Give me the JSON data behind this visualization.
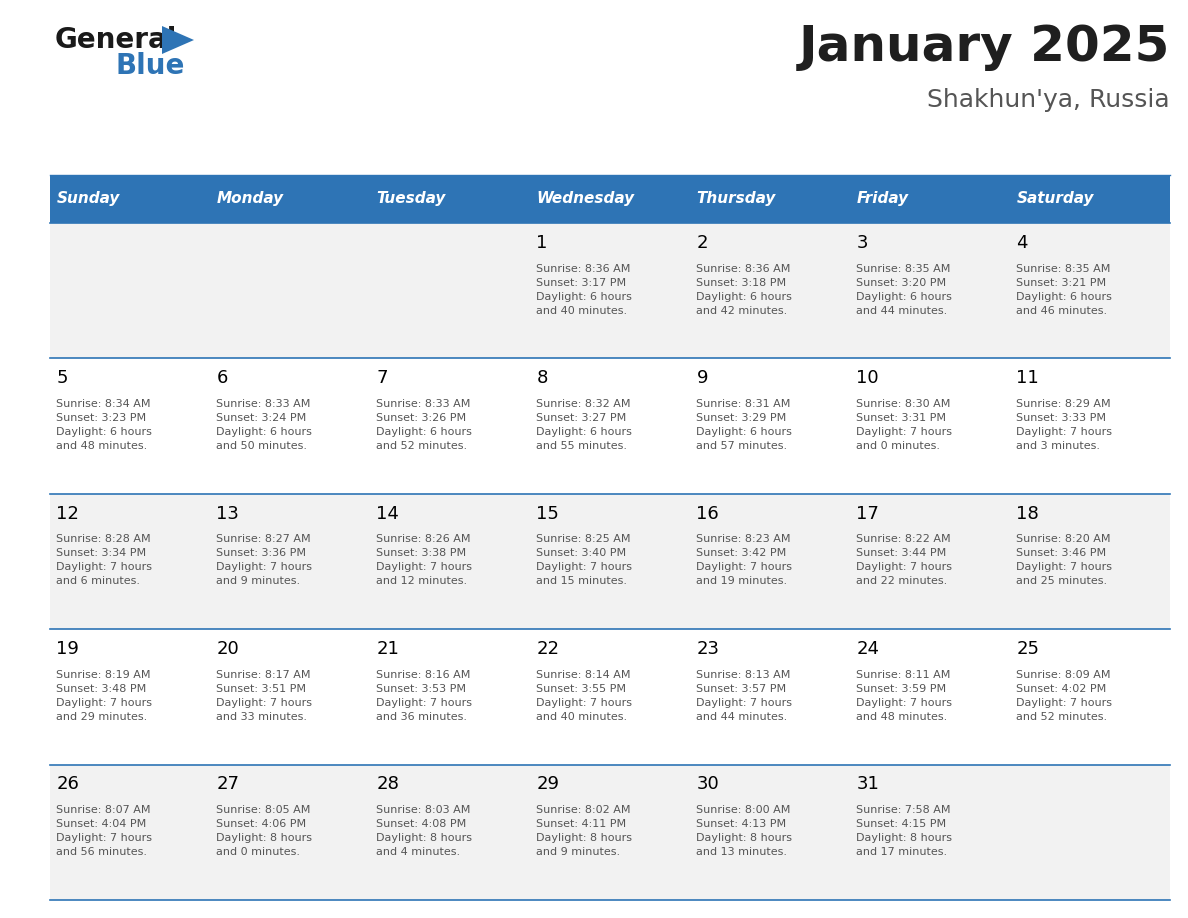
{
  "title": "January 2025",
  "subtitle": "Shakhun'ya, Russia",
  "header_bg": "#2E74B5",
  "header_text_color": "#FFFFFF",
  "weekdays": [
    "Sunday",
    "Monday",
    "Tuesday",
    "Wednesday",
    "Thursday",
    "Friday",
    "Saturday"
  ],
  "cell_bg_odd": "#F2F2F2",
  "cell_bg_even": "#FFFFFF",
  "separator_color": "#2E74B5",
  "day_number_color": "#000000",
  "info_text_color": "#555555",
  "title_color": "#1F1F1F",
  "subtitle_color": "#555555",
  "logo_general_color": "#1A1A1A",
  "logo_blue_color": "#2E74B5",
  "calendar": [
    [
      {
        "day": null,
        "info": null
      },
      {
        "day": null,
        "info": null
      },
      {
        "day": null,
        "info": null
      },
      {
        "day": 1,
        "info": "Sunrise: 8:36 AM\nSunset: 3:17 PM\nDaylight: 6 hours\nand 40 minutes."
      },
      {
        "day": 2,
        "info": "Sunrise: 8:36 AM\nSunset: 3:18 PM\nDaylight: 6 hours\nand 42 minutes."
      },
      {
        "day": 3,
        "info": "Sunrise: 8:35 AM\nSunset: 3:20 PM\nDaylight: 6 hours\nand 44 minutes."
      },
      {
        "day": 4,
        "info": "Sunrise: 8:35 AM\nSunset: 3:21 PM\nDaylight: 6 hours\nand 46 minutes."
      }
    ],
    [
      {
        "day": 5,
        "info": "Sunrise: 8:34 AM\nSunset: 3:23 PM\nDaylight: 6 hours\nand 48 minutes."
      },
      {
        "day": 6,
        "info": "Sunrise: 8:33 AM\nSunset: 3:24 PM\nDaylight: 6 hours\nand 50 minutes."
      },
      {
        "day": 7,
        "info": "Sunrise: 8:33 AM\nSunset: 3:26 PM\nDaylight: 6 hours\nand 52 minutes."
      },
      {
        "day": 8,
        "info": "Sunrise: 8:32 AM\nSunset: 3:27 PM\nDaylight: 6 hours\nand 55 minutes."
      },
      {
        "day": 9,
        "info": "Sunrise: 8:31 AM\nSunset: 3:29 PM\nDaylight: 6 hours\nand 57 minutes."
      },
      {
        "day": 10,
        "info": "Sunrise: 8:30 AM\nSunset: 3:31 PM\nDaylight: 7 hours\nand 0 minutes."
      },
      {
        "day": 11,
        "info": "Sunrise: 8:29 AM\nSunset: 3:33 PM\nDaylight: 7 hours\nand 3 minutes."
      }
    ],
    [
      {
        "day": 12,
        "info": "Sunrise: 8:28 AM\nSunset: 3:34 PM\nDaylight: 7 hours\nand 6 minutes."
      },
      {
        "day": 13,
        "info": "Sunrise: 8:27 AM\nSunset: 3:36 PM\nDaylight: 7 hours\nand 9 minutes."
      },
      {
        "day": 14,
        "info": "Sunrise: 8:26 AM\nSunset: 3:38 PM\nDaylight: 7 hours\nand 12 minutes."
      },
      {
        "day": 15,
        "info": "Sunrise: 8:25 AM\nSunset: 3:40 PM\nDaylight: 7 hours\nand 15 minutes."
      },
      {
        "day": 16,
        "info": "Sunrise: 8:23 AM\nSunset: 3:42 PM\nDaylight: 7 hours\nand 19 minutes."
      },
      {
        "day": 17,
        "info": "Sunrise: 8:22 AM\nSunset: 3:44 PM\nDaylight: 7 hours\nand 22 minutes."
      },
      {
        "day": 18,
        "info": "Sunrise: 8:20 AM\nSunset: 3:46 PM\nDaylight: 7 hours\nand 25 minutes."
      }
    ],
    [
      {
        "day": 19,
        "info": "Sunrise: 8:19 AM\nSunset: 3:48 PM\nDaylight: 7 hours\nand 29 minutes."
      },
      {
        "day": 20,
        "info": "Sunrise: 8:17 AM\nSunset: 3:51 PM\nDaylight: 7 hours\nand 33 minutes."
      },
      {
        "day": 21,
        "info": "Sunrise: 8:16 AM\nSunset: 3:53 PM\nDaylight: 7 hours\nand 36 minutes."
      },
      {
        "day": 22,
        "info": "Sunrise: 8:14 AM\nSunset: 3:55 PM\nDaylight: 7 hours\nand 40 minutes."
      },
      {
        "day": 23,
        "info": "Sunrise: 8:13 AM\nSunset: 3:57 PM\nDaylight: 7 hours\nand 44 minutes."
      },
      {
        "day": 24,
        "info": "Sunrise: 8:11 AM\nSunset: 3:59 PM\nDaylight: 7 hours\nand 48 minutes."
      },
      {
        "day": 25,
        "info": "Sunrise: 8:09 AM\nSunset: 4:02 PM\nDaylight: 7 hours\nand 52 minutes."
      }
    ],
    [
      {
        "day": 26,
        "info": "Sunrise: 8:07 AM\nSunset: 4:04 PM\nDaylight: 7 hours\nand 56 minutes."
      },
      {
        "day": 27,
        "info": "Sunrise: 8:05 AM\nSunset: 4:06 PM\nDaylight: 8 hours\nand 0 minutes."
      },
      {
        "day": 28,
        "info": "Sunrise: 8:03 AM\nSunset: 4:08 PM\nDaylight: 8 hours\nand 4 minutes."
      },
      {
        "day": 29,
        "info": "Sunrise: 8:02 AM\nSunset: 4:11 PM\nDaylight: 8 hours\nand 9 minutes."
      },
      {
        "day": 30,
        "info": "Sunrise: 8:00 AM\nSunset: 4:13 PM\nDaylight: 8 hours\nand 13 minutes."
      },
      {
        "day": 31,
        "info": "Sunrise: 7:58 AM\nSunset: 4:15 PM\nDaylight: 8 hours\nand 17 minutes."
      },
      {
        "day": null,
        "info": null
      }
    ]
  ]
}
